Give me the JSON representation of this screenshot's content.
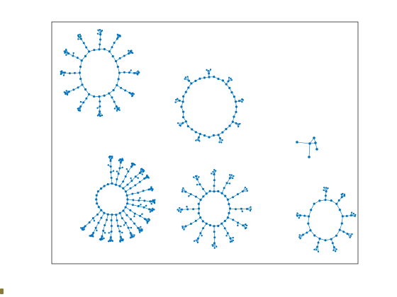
{
  "figure": {
    "node_color": "#0072BD",
    "edge_color": "#0072BD",
    "frame_color": "#262626",
    "background": "#ffffff"
  },
  "graphs": [
    {
      "id": "graph-1",
      "ring_nodes": 24,
      "branches": 12,
      "branch_depth": 3,
      "leaves_per_tip": 5
    },
    {
      "id": "graph-2",
      "ring_nodes": 36,
      "branches": 9,
      "branch_depth": 1,
      "leaves_per_tip": 3
    },
    {
      "id": "graph-3",
      "ring_nodes": 3,
      "branches": 3,
      "branch_depth": 1,
      "leaves_per_tip": 0
    },
    {
      "id": "graph-4",
      "ring_nodes": 24,
      "branches": 16,
      "branch_depth": 4,
      "leaves_per_tip": 6
    },
    {
      "id": "graph-5",
      "ring_nodes": 24,
      "branches": 12,
      "branch_depth": 3,
      "leaves_per_tip": 3
    },
    {
      "id": "graph-6",
      "ring_nodes": 18,
      "branches": 8,
      "branch_depth": 2,
      "leaves_per_tip": 3
    }
  ]
}
